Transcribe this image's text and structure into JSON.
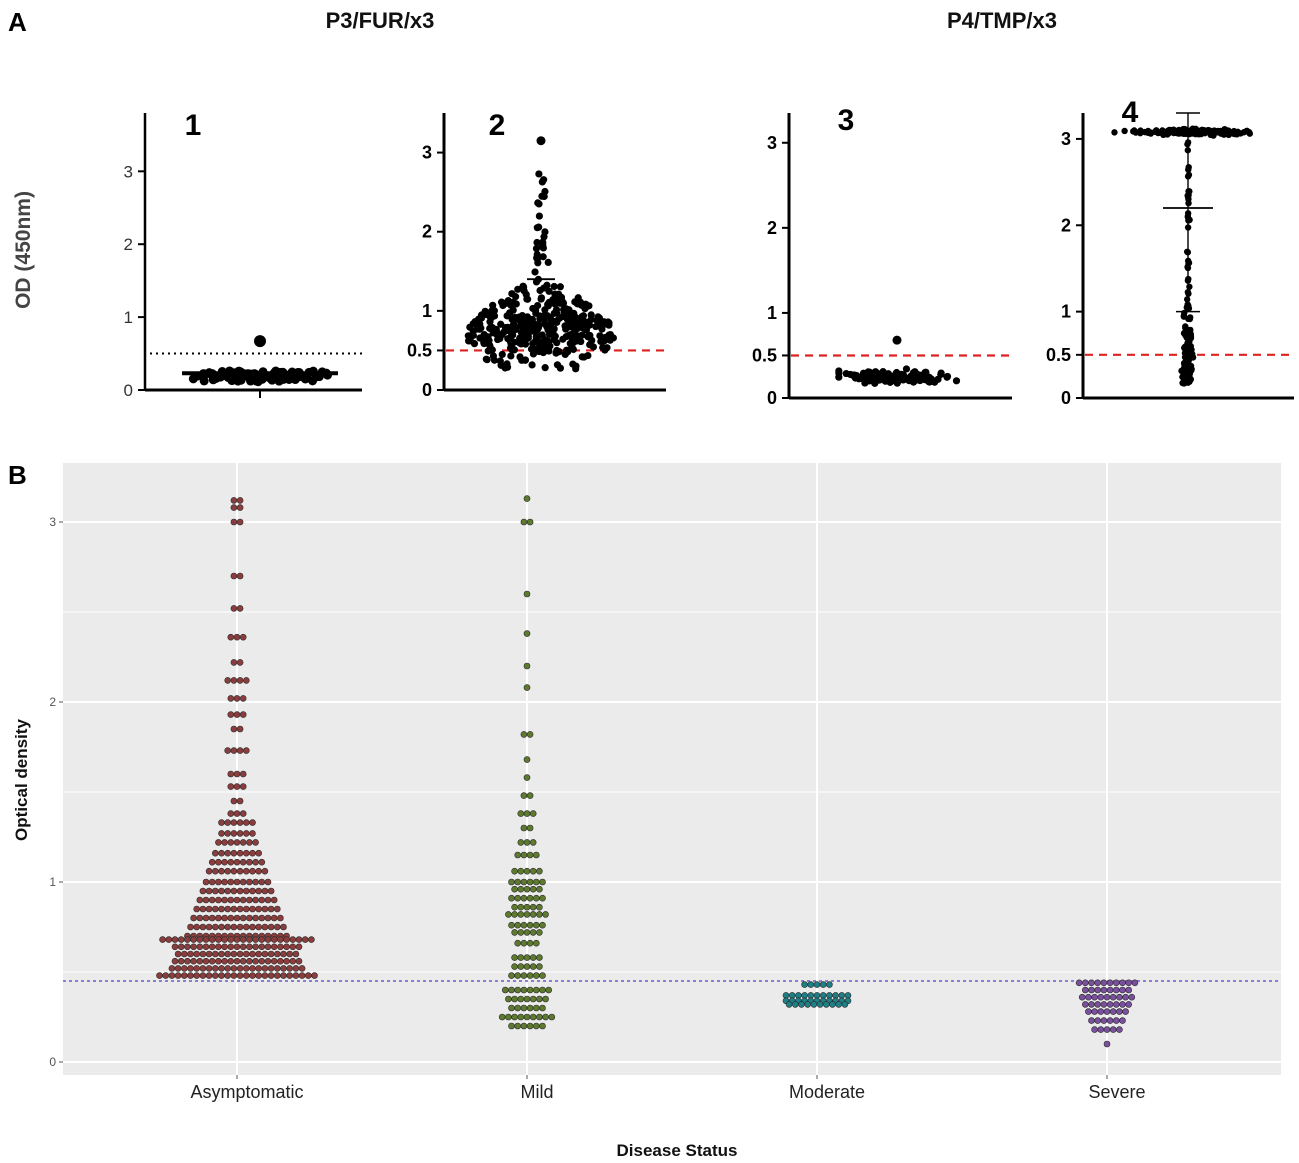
{
  "chart_data": [
    {
      "panel": "A",
      "group_titles": [
        "P3/FUR/x3",
        "P4/TMP/x3"
      ],
      "ylabel": "OD (450nm)",
      "subplots": [
        {
          "id": "1",
          "group": "P3/FUR/x3",
          "type": "scatter",
          "ylim": [
            0,
            3.8
          ],
          "yticks": [
            "0",
            "1",
            "2",
            "3"
          ],
          "threshold": 0.5,
          "threshold_style": "black-dotted",
          "mean": 0.23,
          "max_point": 0.67,
          "distribution": {
            "center": 0.2,
            "spread": 0.06,
            "n": 110
          }
        },
        {
          "id": "2",
          "group": "P3/FUR/x3",
          "type": "scatter",
          "ylim": [
            0,
            3.5
          ],
          "yticks": [
            "0",
            "0.5",
            "1",
            "2",
            "3"
          ],
          "threshold": 0.5,
          "threshold_style": "red-dashed",
          "mean": 1.4,
          "max_point": 3.15,
          "distribution": {
            "center": 0.75,
            "spread": 0.35,
            "n": 380
          }
        },
        {
          "id": "3",
          "group": "P4/TMP/x3",
          "type": "scatter",
          "ylim": [
            0,
            3.35
          ],
          "yticks": [
            "0",
            "0.5",
            "1",
            "2",
            "3"
          ],
          "threshold": 0.5,
          "threshold_style": "red-dashed",
          "mean": 0.25,
          "max_point": 0.68,
          "distribution": {
            "center": 0.25,
            "spread": 0.06,
            "n": 130
          }
        },
        {
          "id": "4",
          "group": "P4/TMP/x3",
          "type": "scatter",
          "ylim": [
            0,
            3.3
          ],
          "yticks": [
            "0",
            "0.5",
            "1",
            "2",
            "3"
          ],
          "threshold": 0.5,
          "threshold_style": "red-dashed",
          "mean": 2.2,
          "mean_lower": 1.0,
          "mean_upper": 3.3,
          "max_point": 3.25,
          "distribution": {
            "top_cluster": 3.08,
            "n_top": 170,
            "lower_center": 0.6,
            "n_lower": 170
          }
        }
      ]
    },
    {
      "panel": "B",
      "type": "scatter",
      "title": "",
      "xlabel": "Disease Status",
      "ylabel": "Optical density",
      "categories": [
        "Asymptomatic",
        "Mild",
        "Moderate",
        "Severe"
      ],
      "colors": [
        "#8b3d3d",
        "#5d7a2e",
        "#1f7f86",
        "#7a4f9e"
      ],
      "ylim": [
        -0.05,
        3.3
      ],
      "yticks": [
        "0",
        "1",
        "2",
        "3"
      ],
      "threshold": 0.45,
      "series": [
        {
          "name": "Asymptomatic",
          "values": [
            3.12,
            3.08,
            3.0,
            2.7,
            2.52,
            2.36,
            2.22,
            2.12,
            2.02,
            1.93,
            1.85,
            1.73,
            1.6,
            1.53,
            1.45,
            1.38,
            1.33,
            1.27,
            1.22,
            1.16,
            1.11,
            1.06,
            1.0,
            0.95,
            0.9,
            0.85,
            0.8,
            0.75,
            0.7,
            0.68,
            0.64,
            0.6,
            0.56,
            0.52,
            0.48
          ]
        },
        {
          "name": "Mild",
          "values": [
            3.13,
            3.0,
            2.6,
            2.38,
            2.2,
            2.08,
            1.82,
            1.68,
            1.58,
            1.48,
            1.38,
            1.3,
            1.22,
            1.15,
            1.06,
            1.0,
            0.96,
            0.91,
            0.86,
            0.82,
            0.76,
            0.72,
            0.66,
            0.58,
            0.53,
            0.48,
            0.4,
            0.35,
            0.3,
            0.25,
            0.2
          ]
        },
        {
          "name": "Moderate",
          "values": [
            0.43,
            0.37,
            0.34,
            0.32
          ]
        },
        {
          "name": "Severe",
          "values": [
            0.44,
            0.4,
            0.36,
            0.32,
            0.28,
            0.23,
            0.18,
            0.1
          ]
        }
      ],
      "rows": [
        {
          "category": "Asymptomatic",
          "counts": [
            2,
            2,
            2,
            2,
            2,
            3,
            2,
            4,
            3,
            3,
            2,
            4,
            3,
            3,
            2,
            3,
            6,
            6,
            7,
            8,
            9,
            10,
            11,
            12,
            13,
            14,
            15,
            16,
            17,
            25,
            21,
            20,
            21,
            22,
            26
          ]
        },
        {
          "category": "Mild",
          "counts": [
            1,
            2,
            1,
            1,
            1,
            1,
            2,
            1,
            1,
            2,
            3,
            2,
            3,
            4,
            5,
            6,
            5,
            6,
            5,
            7,
            6,
            5,
            4,
            5,
            5,
            6,
            8,
            7,
            6,
            9,
            6
          ]
        },
        {
          "category": "Moderate",
          "counts": [
            5,
            11,
            11,
            10
          ]
        },
        {
          "category": "Severe",
          "counts": [
            10,
            8,
            9,
            8,
            7,
            6,
            5,
            1
          ]
        }
      ]
    }
  ]
}
